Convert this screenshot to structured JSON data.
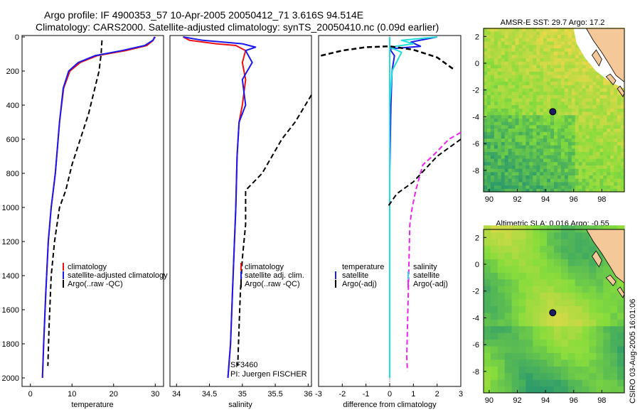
{
  "title": {
    "line1": "Argo profile: IF 4900353_57 10-Apr-2005 20050412_71 3.616S 94.514E",
    "line2": "Climatology: CARS2000. Satellite-adjusted climatology: synTS_20050410.nc (0.09d earlier)"
  },
  "side_label": "CSIRO 03-Aug-2005 16:01:06",
  "colors": {
    "climatology": "#ee1111",
    "satellite": "#1a1aee",
    "argo": "#000000",
    "temp_diff_sat": "#22dddd",
    "sal_diff_argo": "#ee22ee",
    "land": "#f5c89a"
  },
  "chart_data": [
    {
      "type": "line",
      "xlabel": "temperature",
      "ylabel": "",
      "xlim": [
        -2,
        32
      ],
      "ylim": [
        2050,
        0
      ],
      "xticks": [
        "0",
        "10",
        "20",
        "30"
      ],
      "xtick_values": [
        0,
        10,
        20,
        30
      ],
      "yticks": [
        "0",
        "200",
        "400",
        "600",
        "800",
        "1000",
        "1200",
        "1400",
        "1600",
        "1800",
        "2000"
      ],
      "ytick_values": [
        0,
        200,
        400,
        600,
        800,
        1000,
        1200,
        1400,
        1600,
        1800,
        2000
      ],
      "legend": [
        "climatology",
        "satellite-adjusted climatology",
        "Argo(..raw -QC)"
      ],
      "series": [
        {
          "name": "climatology",
          "x": [
            29.8,
            29.5,
            28.0,
            23.0,
            16.0,
            12.0,
            9.5,
            8.0,
            7.0,
            6.0,
            5.0,
            4.3,
            3.7,
            3.2,
            2.9
          ],
          "y": [
            0,
            20,
            50,
            80,
            110,
            150,
            200,
            300,
            500,
            800,
            1000,
            1200,
            1500,
            1800,
            2000
          ]
        },
        {
          "name": "satellite-adjusted climatology",
          "x": [
            30.0,
            29.4,
            27.5,
            22.0,
            15.5,
            11.5,
            9.2,
            7.9,
            7.0,
            6.0,
            5.0,
            4.3,
            3.7,
            3.2,
            2.9
          ],
          "y": [
            0,
            20,
            50,
            80,
            110,
            150,
            200,
            300,
            500,
            800,
            1000,
            1200,
            1500,
            1800,
            2000
          ]
        },
        {
          "name": "Argo(..raw -QC)",
          "x": [
            17.2,
            17.0,
            16.5,
            15.5,
            14.0,
            12.0,
            10.0,
            8.5,
            7.0,
            5.8,
            5.0,
            4.5,
            4.2
          ],
          "y": [
            20,
            100,
            200,
            300,
            450,
            600,
            750,
            900,
            1000,
            1200,
            1400,
            1700,
            1930
          ]
        }
      ]
    },
    {
      "type": "line",
      "xlabel": "salinity",
      "xlim": [
        33.9,
        36.05
      ],
      "ylim": [
        2050,
        0
      ],
      "xticks": [
        "34",
        "34.5",
        "35",
        "35.5",
        "36"
      ],
      "xtick_values": [
        34,
        34.5,
        35,
        35.5,
        36
      ],
      "legend": [
        "climatology",
        "satellite adj. clim.",
        "Argo(..raw -QC)"
      ],
      "annotations": [
        "SF3460",
        "PI: Juergen FISCHER"
      ],
      "series": [
        {
          "name": "climatology",
          "x": [
            34.1,
            34.2,
            34.6,
            34.9,
            35.05,
            35.0,
            35.05,
            35.0,
            34.95,
            34.92,
            34.9,
            34.88,
            34.85,
            34.82,
            34.78
          ],
          "y": [
            0,
            20,
            40,
            50,
            80,
            150,
            250,
            400,
            500,
            700,
            1000,
            1200,
            1500,
            1800,
            2000
          ]
        },
        {
          "name": "satellite adj. clim.",
          "x": [
            34.1,
            34.4,
            35.0,
            35.2,
            35.05,
            35.15,
            35.0,
            35.05,
            34.95,
            34.92,
            34.9,
            34.88,
            34.85,
            34.82,
            34.78
          ],
          "y": [
            0,
            20,
            40,
            60,
            80,
            150,
            250,
            400,
            500,
            700,
            1000,
            1200,
            1500,
            1800,
            2000
          ]
        },
        {
          "name": "Argo(..raw -QC)",
          "x": [
            36.05,
            35.8,
            35.6,
            35.45,
            35.3,
            35.15,
            35.05,
            35.05,
            35.0,
            34.97,
            34.95,
            34.93
          ],
          "y": [
            340,
            500,
            600,
            700,
            800,
            860,
            900,
            1100,
            1300,
            1500,
            1700,
            1930
          ]
        }
      ]
    },
    {
      "type": "line",
      "xlabel": "difference from climatology",
      "xlim": [
        -3,
        3
      ],
      "ylim": [
        2050,
        0
      ],
      "xticks": [
        "-3",
        "-2",
        "-1",
        "0",
        "1",
        "2",
        "3"
      ],
      "xtick_values": [
        -3,
        -2,
        -1,
        0,
        1,
        2,
        3
      ],
      "legend": [
        "temperature",
        "satellite",
        "Argo(-adj)",
        "salinity",
        "satellite",
        "Argo(-adj)"
      ],
      "series": [
        {
          "name": "temperature satellite",
          "x": [
            2.0,
            0.9,
            1.3,
            0.0,
            0.2,
            0.1,
            0.05,
            0.0,
            0.0,
            0.0,
            0.0
          ],
          "y": [
            0,
            30,
            55,
            70,
            110,
            200,
            400,
            800,
            1200,
            1600,
            2000
          ]
        },
        {
          "name": "temperature satellite (cyan)",
          "x": [
            2.0,
            0.5,
            1.0,
            0.0,
            0.5,
            0.1,
            0.0,
            0.0,
            0.0,
            0.0
          ],
          "y": [
            0,
            20,
            40,
            60,
            90,
            200,
            400,
            800,
            1400,
            2000
          ]
        },
        {
          "name": "temperature Argo(-adj)",
          "x": [
            -2.9,
            -2.0,
            -1.0,
            0.0,
            1.0,
            2.0,
            2.7
          ],
          "y": [
            110,
            80,
            60,
            55,
            75,
            120,
            190
          ]
        },
        {
          "name": "salinity satellite",
          "x": [
            0.0,
            0.0
          ],
          "y": [
            0,
            2000
          ]
        },
        {
          "name": "salinity Argo(-adj)",
          "x": [
            3.0,
            2.5,
            1.8,
            1.4,
            1.3,
            1.1,
            0.95,
            0.85,
            0.8,
            0.75,
            0.72,
            0.75
          ],
          "y": [
            560,
            600,
            700,
            750,
            800,
            900,
            1000,
            1100,
            1400,
            1700,
            1880,
            1960
          ]
        },
        {
          "name": "Argo(-adj) lower",
          "x": [
            3.0,
            2.0,
            1.0,
            0.3,
            -0.1
          ],
          "y": [
            600,
            700,
            850,
            920,
            1000
          ]
        }
      ]
    }
  ],
  "maps": [
    {
      "title": "AMSR-E SST: 29.7 Argo: 17.2",
      "xticks": [
        "90",
        "92",
        "94",
        "96",
        "98"
      ],
      "xtick_values": [
        90,
        92,
        94,
        96,
        98
      ],
      "yticks": [
        "2",
        "0",
        "-2",
        "-4",
        "-6",
        "-8"
      ],
      "ytick_values": [
        2,
        0,
        -2,
        -4,
        -6,
        -8
      ],
      "xlim": [
        89.6,
        99.6
      ],
      "ylim": [
        -9.6,
        2.6
      ],
      "marker": {
        "lon": 94.514,
        "lat": -3.616
      }
    },
    {
      "title": "Altimetric SLA: 0.016 Argo: -0.55",
      "xticks": [
        "90",
        "92",
        "94",
        "96",
        "98"
      ],
      "xtick_values": [
        90,
        92,
        94,
        96,
        98
      ],
      "yticks": [
        "2",
        "0",
        "-2",
        "-4",
        "-6",
        "-8"
      ],
      "ytick_values": [
        2,
        0,
        -2,
        -4,
        -6,
        -8
      ],
      "xlim": [
        89.6,
        99.6
      ],
      "ylim": [
        -9.6,
        2.6
      ],
      "marker": {
        "lon": 94.514,
        "lat": -3.616
      }
    }
  ]
}
